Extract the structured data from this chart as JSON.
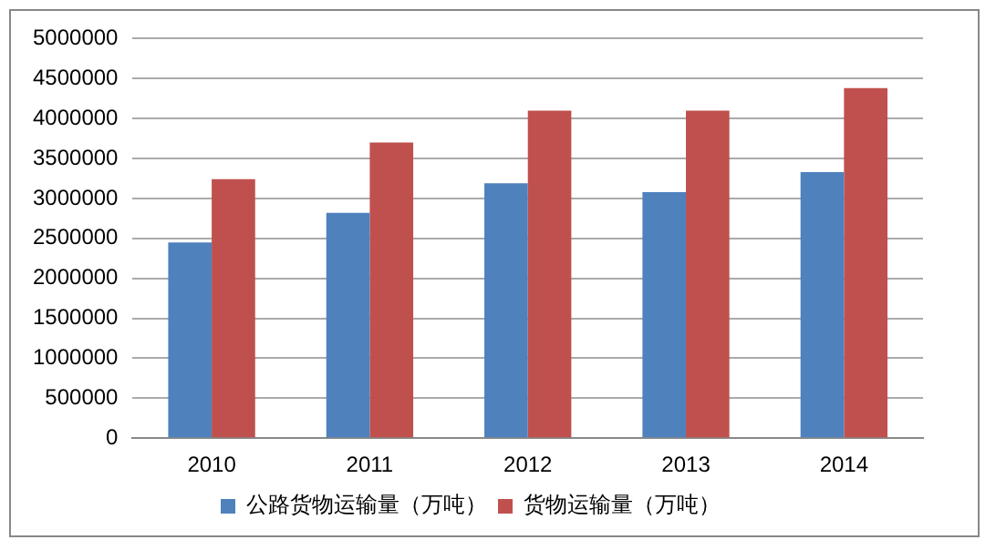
{
  "chart_data": {
    "type": "bar",
    "categories": [
      "2010",
      "2011",
      "2012",
      "2013",
      "2014"
    ],
    "series": [
      {
        "name": "公路货物运输量（万吨）",
        "color": "#4f81bd",
        "values": [
          2450000,
          2820000,
          3190000,
          3080000,
          3330000
        ]
      },
      {
        "name": "货物运输量（万吨）",
        "color": "#c0504d",
        "values": [
          3240000,
          3700000,
          4100000,
          4100000,
          4380000
        ]
      }
    ],
    "ylim": [
      0,
      5000000
    ],
    "yticks": [
      0,
      500000,
      1000000,
      1500000,
      2000000,
      2500000,
      3000000,
      3500000,
      4000000,
      4500000,
      5000000
    ],
    "grid": "y",
    "legend": "bottom"
  }
}
